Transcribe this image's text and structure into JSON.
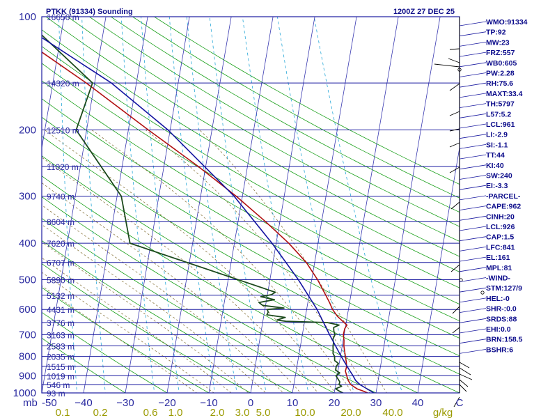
{
  "header": {
    "station": "PTKK (91334) Sounding",
    "time": "1200Z 27 DEC 25"
  },
  "chart_data": {
    "type": "skew-t log-p sounding",
    "y_axis": {
      "label": "mb",
      "scale": "log",
      "range": [
        1000,
        100
      ]
    },
    "x_axis": {
      "label": "C",
      "range": [
        -50,
        50
      ]
    },
    "pressure_ticks": [
      {
        "p": 100,
        "label": "100"
      },
      {
        "p": 200,
        "label": "200"
      },
      {
        "p": 300,
        "label": "300"
      },
      {
        "p": 400,
        "label": "400"
      },
      {
        "p": 500,
        "label": "500"
      },
      {
        "p": 600,
        "label": "600"
      },
      {
        "p": 700,
        "label": "700"
      },
      {
        "p": 800,
        "label": "800"
      },
      {
        "p": 900,
        "label": "900"
      },
      {
        "p": 1000,
        "label": "1000"
      }
    ],
    "temp_ticks": [
      {
        "t": -50,
        "label": "-50"
      },
      {
        "t": -40,
        "label": "−40"
      },
      {
        "t": -30,
        "label": "−30"
      },
      {
        "t": -20,
        "label": "−20"
      },
      {
        "t": -10,
        "label": "−10"
      },
      {
        "t": 0,
        "label": "0"
      },
      {
        "t": 10,
        "label": "10"
      },
      {
        "t": 20,
        "label": "20"
      },
      {
        "t": 30,
        "label": "30"
      },
      {
        "t": 40,
        "label": "40"
      },
      {
        "t": 50,
        "label": "C"
      }
    ],
    "mixing_ratio_labels": [
      {
        "t": -45,
        "label": "0.1"
      },
      {
        "t": -36,
        "label": "0.2"
      },
      {
        "t": -24,
        "label": "0.6"
      },
      {
        "t": -18,
        "label": "1.0"
      },
      {
        "t": -8,
        "label": "2.0"
      },
      {
        "t": -2,
        "label": "3.0"
      },
      {
        "t": 3,
        "label": "5.0"
      },
      {
        "t": 13,
        "label": "10.0"
      },
      {
        "t": 24,
        "label": "20.0"
      },
      {
        "t": 34,
        "label": "40.0"
      },
      {
        "t": 46,
        "label": "g/kg"
      }
    ],
    "height_labels": [
      {
        "p": 100,
        "label": "16650 m"
      },
      {
        "p": 150,
        "label": "14320 m"
      },
      {
        "p": 200,
        "label": "12510 m"
      },
      {
        "p": 250,
        "label": "11020 m"
      },
      {
        "p": 300,
        "label": "9740 m"
      },
      {
        "p": 350,
        "label": "8604 m"
      },
      {
        "p": 400,
        "label": "7620 m"
      },
      {
        "p": 450,
        "label": "6707 m"
      },
      {
        "p": 500,
        "label": "5890 m"
      },
      {
        "p": 550,
        "label": "5132 m"
      },
      {
        "p": 600,
        "label": "4431 m"
      },
      {
        "p": 650,
        "label": "3776 m"
      },
      {
        "p": 700,
        "label": "3163 m"
      },
      {
        "p": 750,
        "label": "2583 m"
      },
      {
        "p": 800,
        "label": "2035 m"
      },
      {
        "p": 850,
        "label": "1515 m"
      },
      {
        "p": 900,
        "label": "1019 m"
      },
      {
        "p": 950,
        "label": "546 m"
      },
      {
        "p": 1000,
        "label": "93 m"
      }
    ],
    "series": [
      {
        "name": "temperature",
        "color": "#b01010",
        "points": [
          [
            1005,
            28.5
          ],
          [
            990,
            27
          ],
          [
            975,
            25.3
          ],
          [
            950,
            23.6
          ],
          [
            925,
            22.8
          ],
          [
            900,
            22.3
          ],
          [
            875,
            21.8
          ],
          [
            850,
            21.9
          ],
          [
            825,
            21.6
          ],
          [
            800,
            21.2
          ],
          [
            775,
            20.8
          ],
          [
            750,
            20.4
          ],
          [
            725,
            20.2
          ],
          [
            700,
            19.8
          ],
          [
            675,
            19.9
          ],
          [
            660,
            20.3
          ],
          [
            650,
            19.5
          ],
          [
            625,
            17.6
          ],
          [
            600,
            16.2
          ],
          [
            575,
            15.2
          ],
          [
            550,
            14.0
          ],
          [
            500,
            11.4
          ],
          [
            450,
            8.0
          ],
          [
            400,
            3.0
          ],
          [
            350,
            -3.5
          ],
          [
            300,
            -11.5
          ],
          [
            250,
            -21.8
          ],
          [
            200,
            -35.2
          ],
          [
            150,
            -52.0
          ],
          [
            125,
            -63.5
          ],
          [
            100,
            -77.0
          ]
        ]
      },
      {
        "name": "dewpoint",
        "color": "#1c4a1c",
        "points": [
          [
            1005,
            22.5
          ],
          [
            990,
            21.2
          ],
          [
            975,
            20.2
          ],
          [
            960,
            21.5
          ],
          [
            950,
            20.8
          ],
          [
            935,
            20.9
          ],
          [
            920,
            20.4
          ],
          [
            900,
            19.7
          ],
          [
            885,
            20.5
          ],
          [
            870,
            19.4
          ],
          [
            850,
            19.4
          ],
          [
            835,
            19.8
          ],
          [
            820,
            18.8
          ],
          [
            800,
            18.6
          ],
          [
            785,
            18.1
          ],
          [
            770,
            18.0
          ],
          [
            750,
            17.8
          ],
          [
            735,
            17.8
          ],
          [
            720,
            17.5
          ],
          [
            700,
            17.8
          ],
          [
            685,
            17.4
          ],
          [
            670,
            17.2
          ],
          [
            660,
            18.4
          ],
          [
            650,
            15.5
          ],
          [
            645,
            5.5
          ],
          [
            640,
            3.3
          ],
          [
            630,
            5.2
          ],
          [
            620,
            0.7
          ],
          [
            610,
            0.9
          ],
          [
            600,
            0.6
          ],
          [
            595,
            4.5
          ],
          [
            585,
            -0.7
          ],
          [
            575,
            -1.7
          ],
          [
            565,
            1.9
          ],
          [
            555,
            -1.5
          ],
          [
            548,
            1.0
          ],
          [
            540,
            1.8
          ],
          [
            400,
            -35.0
          ],
          [
            300,
            -39.0
          ],
          [
            200,
            -52.5
          ],
          [
            150,
            -50.5
          ],
          [
            100,
            -70.0
          ]
        ]
      },
      {
        "name": "parcel",
        "color": "#1414a0",
        "points": [
          [
            1000,
            29.5
          ],
          [
            950,
            25.8
          ],
          [
            926,
            24.6
          ],
          [
            900,
            23.8
          ],
          [
            850,
            22.0
          ],
          [
            800,
            20.2
          ],
          [
            700,
            16.5
          ],
          [
            600,
            12.5
          ],
          [
            500,
            6.8
          ],
          [
            400,
            -1.0
          ],
          [
            300,
            -12.0
          ],
          [
            200,
            -30.5
          ],
          [
            150,
            -46.0
          ],
          [
            100,
            -73.0
          ]
        ]
      }
    ]
  },
  "indices": [
    "WMO:91334",
    "TP:92",
    "MW:23",
    "FRZ:557",
    "WB0:605",
    "PW:2.28",
    "RH:75.6",
    "MAXT:33.4",
    "TH:5797",
    "L57:5.2",
    "LCL:961",
    "LI:-2.9",
    "SI:-1.1",
    "TT:44",
    "KI:40",
    "SW:240",
    "EI:-3.3",
    "-PARCEL-",
    "CAPE:962",
    "CINH:20",
    "LCL:926",
    "CAP:1.5",
    "LFC:841",
    "EL:161",
    "MPL:81",
    "-WIND-",
    "STM:127/9",
    "HEL:-0",
    "SHR-:0.0",
    "SRDS:88",
    "EHI:0.0",
    "BRN:158.5",
    "BSHR:6"
  ]
}
